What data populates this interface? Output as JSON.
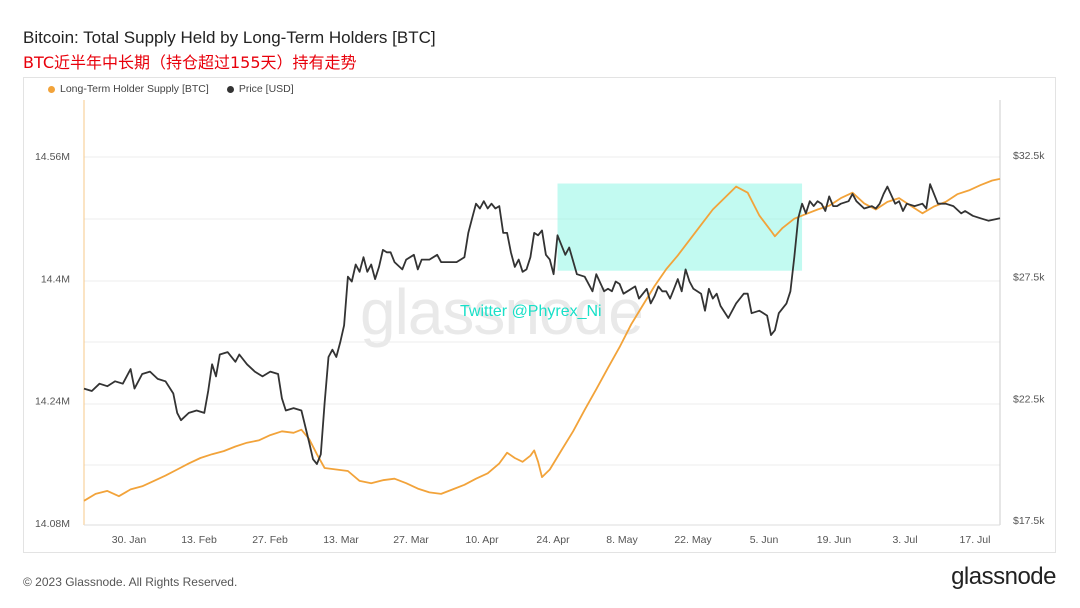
{
  "header": {
    "title": "Bitcoin: Total Supply Held by Long-Term Holders [BTC]",
    "subtitle": "BTC近半年中长期（持仓超过155天）持有走势"
  },
  "watermark": "glassnode",
  "annotation": "Twitter @Phyrex_Ni",
  "footer": {
    "copyright": "© 2023 Glassnode. All Rights Reserved.",
    "brand": "glassnode"
  },
  "colors": {
    "supply": "#f2a33a",
    "price": "#333333",
    "highlight": "#8ff5e6",
    "annotation": "#19e0c8"
  },
  "chart_data": {
    "type": "line",
    "legend": [
      "Long-Term Holder Supply [BTC]",
      "Price [USD]"
    ],
    "legend_position": "top-left",
    "grid": true,
    "x_ticks": [
      "30. Jan",
      "13. Feb",
      "27. Feb",
      "13. Mar",
      "27. Mar",
      "10. Apr",
      "24. Apr",
      "8. May",
      "22. May",
      "5. Jun",
      "19. Jun",
      "3. Jul",
      "17. Jul"
    ],
    "x_range_days": [
      0,
      185
    ],
    "y_left": {
      "ticks": [
        "14.08M",
        "14.24M",
        "14.4M",
        "14.56M"
      ],
      "range": [
        14.08,
        14.6
      ],
      "unit": "M BTC"
    },
    "y_right": {
      "ticks": [
        "$17.5k",
        "$22.5k",
        "$27.5k",
        "$32.5k"
      ],
      "range": [
        17.5,
        33.5
      ],
      "unit": "k USD"
    },
    "highlight_box": {
      "x_start_day": 122,
      "x_end_day": 185,
      "y_low": 14.41,
      "y_high": 14.524
    },
    "series": [
      {
        "name": "Long-Term Holder Supply [BTC]",
        "axis": "left",
        "points": [
          [
            0,
            14.109
          ],
          [
            3,
            14.118
          ],
          [
            6,
            14.122
          ],
          [
            9,
            14.115
          ],
          [
            12,
            14.124
          ],
          [
            15,
            14.128
          ],
          [
            18,
            14.135
          ],
          [
            21,
            14.142
          ],
          [
            24,
            14.15
          ],
          [
            27,
            14.158
          ],
          [
            30,
            14.165
          ],
          [
            33,
            14.17
          ],
          [
            36,
            14.174
          ],
          [
            39,
            14.18
          ],
          [
            42,
            14.185
          ],
          [
            45,
            14.188
          ],
          [
            48,
            14.195
          ],
          [
            51,
            14.2
          ],
          [
            54,
            14.198
          ],
          [
            56,
            14.202
          ],
          [
            58,
            14.19
          ],
          [
            60,
            14.17
          ],
          [
            62,
            14.152
          ],
          [
            65,
            14.15
          ],
          [
            68,
            14.148
          ],
          [
            71,
            14.135
          ],
          [
            74,
            14.132
          ],
          [
            77,
            14.136
          ],
          [
            80,
            14.138
          ],
          [
            83,
            14.132
          ],
          [
            86,
            14.125
          ],
          [
            89,
            14.12
          ],
          [
            92,
            14.118
          ],
          [
            95,
            14.124
          ],
          [
            98,
            14.13
          ],
          [
            101,
            14.138
          ],
          [
            104,
            14.145
          ],
          [
            107,
            14.158
          ],
          [
            109,
            14.172
          ],
          [
            111,
            14.165
          ],
          [
            113,
            14.16
          ],
          [
            115,
            14.168
          ],
          [
            116,
            14.175
          ],
          [
            117,
            14.16
          ],
          [
            118,
            14.14
          ],
          [
            120,
            14.15
          ],
          [
            123,
            14.175
          ],
          [
            126,
            14.2
          ],
          [
            129,
            14.228
          ],
          [
            132,
            14.255
          ],
          [
            135,
            14.283
          ],
          [
            138,
            14.31
          ],
          [
            141,
            14.34
          ],
          [
            144,
            14.365
          ],
          [
            147,
            14.39
          ],
          [
            150,
            14.412
          ],
          [
            153,
            14.43
          ],
          [
            156,
            14.45
          ],
          [
            159,
            14.47
          ],
          [
            162,
            14.49
          ],
          [
            165,
            14.505
          ],
          [
            168,
            14.52
          ],
          [
            171,
            14.512
          ],
          [
            174,
            14.482
          ],
          [
            177,
            14.462
          ],
          [
            178,
            14.455
          ],
          [
            180,
            14.466
          ],
          [
            183,
            14.478
          ],
          [
            186,
            14.484
          ],
          [
            189,
            14.49
          ],
          [
            192,
            14.495
          ],
          [
            195,
            14.505
          ],
          [
            198,
            14.512
          ],
          [
            201,
            14.498
          ],
          [
            204,
            14.49
          ],
          [
            207,
            14.5
          ],
          [
            210,
            14.505
          ],
          [
            213,
            14.495
          ],
          [
            216,
            14.485
          ],
          [
            219,
            14.494
          ],
          [
            222,
            14.5
          ],
          [
            225,
            14.51
          ],
          [
            228,
            14.515
          ],
          [
            231,
            14.522
          ],
          [
            234,
            14.528
          ],
          [
            236,
            14.53
          ]
        ]
      },
      {
        "name": "Price [USD]",
        "axis": "right",
        "points": [
          [
            0,
            22.9
          ],
          [
            2,
            22.8
          ],
          [
            4,
            23.1
          ],
          [
            6,
            23.0
          ],
          [
            8,
            23.2
          ],
          [
            10,
            23.1
          ],
          [
            12,
            23.7
          ],
          [
            13,
            22.9
          ],
          [
            15,
            23.5
          ],
          [
            17,
            23.6
          ],
          [
            19,
            23.3
          ],
          [
            21,
            23.2
          ],
          [
            23,
            22.7
          ],
          [
            24,
            21.9
          ],
          [
            25,
            21.6
          ],
          [
            27,
            21.9
          ],
          [
            29,
            22.0
          ],
          [
            31,
            21.9
          ],
          [
            32,
            22.8
          ],
          [
            33,
            23.9
          ],
          [
            34,
            23.4
          ],
          [
            35,
            24.3
          ],
          [
            37,
            24.4
          ],
          [
            39,
            24.0
          ],
          [
            40,
            24.3
          ],
          [
            42,
            23.9
          ],
          [
            44,
            23.6
          ],
          [
            46,
            23.4
          ],
          [
            48,
            23.6
          ],
          [
            50,
            23.5
          ],
          [
            51,
            22.5
          ],
          [
            52,
            22.0
          ],
          [
            54,
            22.1
          ],
          [
            56,
            22.0
          ],
          [
            58,
            20.7
          ],
          [
            59,
            20.0
          ],
          [
            60,
            19.8
          ],
          [
            61,
            20.2
          ],
          [
            62,
            22.3
          ],
          [
            63,
            24.2
          ],
          [
            64,
            24.5
          ],
          [
            65,
            24.2
          ],
          [
            66,
            24.8
          ],
          [
            67,
            25.5
          ],
          [
            68,
            27.5
          ],
          [
            69,
            27.3
          ],
          [
            70,
            28.0
          ],
          [
            71,
            27.7
          ],
          [
            72,
            28.3
          ],
          [
            73,
            27.7
          ],
          [
            74,
            28.0
          ],
          [
            75,
            27.4
          ],
          [
            76,
            27.9
          ],
          [
            77,
            28.6
          ],
          [
            78,
            28.5
          ],
          [
            79,
            28.5
          ],
          [
            80,
            28.1
          ],
          [
            82,
            27.8
          ],
          [
            83,
            28.2
          ],
          [
            85,
            28.4
          ],
          [
            86,
            27.8
          ],
          [
            87,
            28.2
          ],
          [
            89,
            28.2
          ],
          [
            91,
            28.4
          ],
          [
            92,
            28.1
          ],
          [
            94,
            28.1
          ],
          [
            96,
            28.1
          ],
          [
            98,
            28.3
          ],
          [
            99,
            29.3
          ],
          [
            100,
            29.9
          ],
          [
            101,
            30.5
          ],
          [
            102,
            30.3
          ],
          [
            103,
            30.6
          ],
          [
            104,
            30.3
          ],
          [
            105,
            30.5
          ],
          [
            106,
            30.3
          ],
          [
            107,
            30.4
          ],
          [
            108,
            29.3
          ],
          [
            109,
            29.3
          ],
          [
            110,
            28.5
          ],
          [
            111,
            27.9
          ],
          [
            112,
            28.2
          ],
          [
            113,
            27.7
          ],
          [
            114,
            27.8
          ],
          [
            115,
            28.3
          ],
          [
            116,
            29.3
          ],
          [
            117,
            29.2
          ],
          [
            118,
            29.4
          ],
          [
            119,
            28.4
          ],
          [
            120,
            28.2
          ],
          [
            121,
            27.6
          ],
          [
            122,
            29.2
          ],
          [
            124,
            28.4
          ],
          [
            125,
            28.7
          ],
          [
            127,
            27.6
          ],
          [
            129,
            27.5
          ],
          [
            131,
            26.9
          ],
          [
            132,
            27.6
          ],
          [
            134,
            26.9
          ],
          [
            135,
            27.0
          ],
          [
            136,
            26.9
          ],
          [
            137,
            27.3
          ],
          [
            138,
            27.2
          ],
          [
            139,
            26.8
          ],
          [
            140,
            26.9
          ],
          [
            142,
            27.1
          ],
          [
            143,
            26.6
          ],
          [
            144,
            26.8
          ],
          [
            145,
            27.0
          ],
          [
            146,
            26.4
          ],
          [
            147,
            26.7
          ],
          [
            148,
            27.1
          ],
          [
            149,
            26.9
          ],
          [
            150,
            26.9
          ],
          [
            151,
            26.6
          ],
          [
            152,
            27.0
          ],
          [
            153,
            27.4
          ],
          [
            154,
            26.9
          ],
          [
            155,
            27.8
          ],
          [
            156,
            27.3
          ],
          [
            157,
            27.0
          ],
          [
            159,
            26.8
          ],
          [
            160,
            26.1
          ],
          [
            161,
            27.0
          ],
          [
            162,
            26.6
          ],
          [
            163,
            26.8
          ],
          [
            164,
            26.3
          ],
          [
            166,
            25.8
          ],
          [
            168,
            26.4
          ],
          [
            170,
            26.8
          ],
          [
            171,
            26.8
          ],
          [
            172,
            26.0
          ],
          [
            174,
            26.1
          ],
          [
            176,
            25.9
          ],
          [
            177,
            25.1
          ],
          [
            178,
            25.3
          ],
          [
            179,
            26.0
          ],
          [
            181,
            26.4
          ],
          [
            182,
            26.9
          ],
          [
            183,
            28.3
          ],
          [
            184,
            29.9
          ],
          [
            185,
            30.5
          ],
          [
            186,
            30.1
          ],
          [
            187,
            30.6
          ],
          [
            188,
            30.4
          ],
          [
            189,
            30.6
          ],
          [
            190,
            30.5
          ],
          [
            191,
            30.2
          ],
          [
            192,
            30.8
          ],
          [
            193,
            30.4
          ],
          [
            194,
            30.4
          ],
          [
            195,
            30.5
          ],
          [
            197,
            30.6
          ],
          [
            198,
            30.9
          ],
          [
            199,
            30.6
          ],
          [
            201,
            30.3
          ],
          [
            203,
            30.4
          ],
          [
            204,
            30.3
          ],
          [
            205,
            30.5
          ],
          [
            206,
            30.9
          ],
          [
            207,
            31.2
          ],
          [
            209,
            30.5
          ],
          [
            210,
            30.6
          ],
          [
            211,
            30.2
          ],
          [
            212,
            30.5
          ],
          [
            214,
            30.4
          ],
          [
            216,
            30.5
          ],
          [
            217,
            30.3
          ],
          [
            218,
            31.3
          ],
          [
            220,
            30.5
          ],
          [
            222,
            30.5
          ],
          [
            224,
            30.4
          ],
          [
            226,
            30.1
          ],
          [
            227,
            30.2
          ],
          [
            229,
            30.0
          ],
          [
            231,
            29.9
          ],
          [
            233,
            29.8
          ],
          [
            236,
            29.9
          ]
        ]
      }
    ]
  }
}
